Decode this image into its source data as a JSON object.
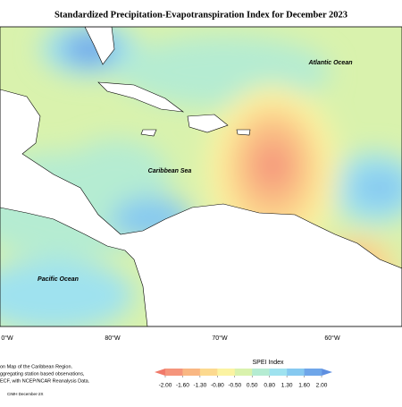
{
  "title": "Standardized Precipitation-Evapotranspiration Index for December 2023",
  "map": {
    "labels": [
      "Atlantic Ocean",
      "Caribbean Sea",
      "Pacific Ocean"
    ],
    "longitudes": [
      "0°W",
      "80°W",
      "70°W",
      "60°W"
    ]
  },
  "legend": {
    "title": "SPEI Index",
    "ticks": [
      {
        "value": -2,
        "label": "-2.00"
      },
      {
        "value": -1.6,
        "label": "-1.60"
      },
      {
        "value": -1.3,
        "label": "-1.30"
      },
      {
        "value": -0.8,
        "label": "-0.80"
      },
      {
        "value": -0.5,
        "label": "-0.50"
      },
      {
        "value": 0.5,
        "label": "0.50"
      },
      {
        "value": 0.8,
        "label": "0.80"
      },
      {
        "value": 1.3,
        "label": "1.30"
      },
      {
        "value": 1.6,
        "label": "1.60"
      },
      {
        "value": 2,
        "label": "2.00"
      }
    ],
    "colors": [
      "#f5957c",
      "#f9b783",
      "#fcd98f",
      "#fbf3a2",
      "#d9f2ad",
      "#b5ecd2",
      "#9fe2ef",
      "#86c9f0",
      "#6fa6e9"
    ],
    "low_color": "#f07a6a",
    "high_color": "#5f8fe0"
  },
  "notes": [
    "on Map of the Caribbean Region.",
    "ggregating station based observations,",
    "ECF, with NCEP/NCAR Reanalysis Data."
  ],
  "credit": "CIMH December-2X"
}
